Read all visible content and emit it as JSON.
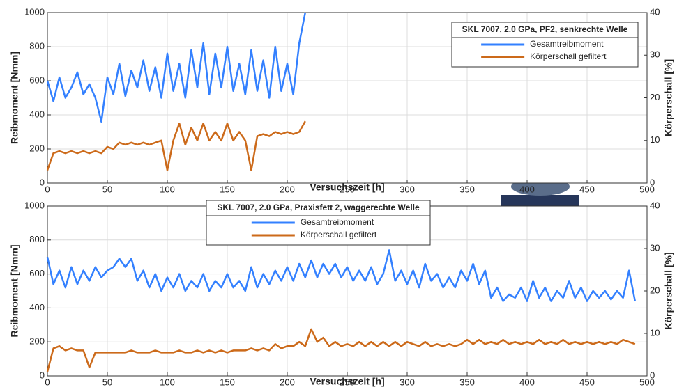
{
  "chart_data": [
    {
      "type": "line",
      "xlabel": "Versuchszeit [h]",
      "ylabel": "Reibmoment [Nmm]",
      "y2label": "Körperschall [%]",
      "legend_title": "SKL 7007, 2.0 GPa, PF2, senkrechte Welle",
      "grid": true,
      "xlim": [
        0,
        500
      ],
      "xticks": [
        0,
        50,
        100,
        150,
        200,
        250,
        300,
        350,
        400,
        450,
        500
      ],
      "ylim": [
        0,
        1000
      ],
      "yticks": [
        0,
        200,
        400,
        600,
        800,
        1000
      ],
      "y2lim": [
        0,
        40
      ],
      "y2ticks": [
        0,
        10,
        20,
        30,
        40
      ],
      "x": [
        0,
        5,
        10,
        15,
        20,
        25,
        30,
        35,
        40,
        45,
        50,
        55,
        60,
        65,
        70,
        75,
        80,
        85,
        90,
        95,
        100,
        105,
        110,
        115,
        120,
        125,
        130,
        135,
        140,
        145,
        150,
        155,
        160,
        165,
        170,
        175,
        180,
        185,
        190,
        195,
        200,
        205,
        210,
        215
      ],
      "series": [
        {
          "name": "Gesamtreibmoment",
          "color": "#3380ff",
          "values": [
            600,
            480,
            620,
            500,
            560,
            650,
            520,
            580,
            500,
            360,
            620,
            520,
            700,
            510,
            660,
            560,
            720,
            540,
            680,
            500,
            760,
            540,
            700,
            500,
            780,
            560,
            820,
            520,
            760,
            560,
            800,
            540,
            700,
            520,
            780,
            540,
            720,
            500,
            800,
            540,
            700,
            520,
            820,
            1000
          ]
        },
        {
          "name": "Körperschall gefiltert",
          "color": "#cc6a1a",
          "axis": "y2",
          "values": [
            3,
            7,
            7.5,
            7,
            7.5,
            7,
            7.5,
            7,
            7.5,
            7,
            8.5,
            8,
            9.5,
            9,
            9.5,
            9,
            9.5,
            9,
            9.5,
            10,
            3,
            10,
            14,
            9,
            13,
            10,
            14,
            10,
            12,
            10,
            14,
            10,
            12,
            10,
            3,
            11,
            11.5,
            11,
            12,
            11.5,
            12,
            11.5,
            12,
            14.5
          ]
        }
      ]
    },
    {
      "type": "line",
      "xlabel": "Versuchszeit [h]",
      "ylabel": "Reibmoment [Nmm]",
      "y2label": "Körperschall [%]",
      "legend_title": "SKL 7007, 2.0 GPa, Praxisfett 2, waggerechte Welle",
      "grid": true,
      "xlim": [
        0,
        500
      ],
      "xticks": [
        0,
        50,
        100,
        150,
        200,
        250,
        300,
        350,
        400,
        450,
        500
      ],
      "ylim": [
        0,
        1000
      ],
      "yticks": [
        0,
        200,
        400,
        600,
        800,
        1000
      ],
      "y2lim": [
        0,
        40
      ],
      "y2ticks": [
        0,
        10,
        20,
        30,
        40
      ],
      "x": [
        0,
        5,
        10,
        15,
        20,
        25,
        30,
        35,
        40,
        45,
        50,
        55,
        60,
        65,
        70,
        75,
        80,
        85,
        90,
        95,
        100,
        105,
        110,
        115,
        120,
        125,
        130,
        135,
        140,
        145,
        150,
        155,
        160,
        165,
        170,
        175,
        180,
        185,
        190,
        195,
        200,
        205,
        210,
        215,
        220,
        225,
        230,
        235,
        240,
        245,
        250,
        255,
        260,
        265,
        270,
        275,
        280,
        285,
        290,
        295,
        300,
        305,
        310,
        315,
        320,
        325,
        330,
        335,
        340,
        345,
        350,
        355,
        360,
        365,
        370,
        375,
        380,
        385,
        390,
        395,
        400,
        405,
        410,
        415,
        420,
        425,
        430,
        435,
        440,
        445,
        450,
        455,
        460,
        465,
        470,
        475,
        480,
        485,
        490
      ],
      "series": [
        {
          "name": "Gesamtreibmoment",
          "color": "#3380ff",
          "values": [
            700,
            540,
            620,
            520,
            640,
            540,
            620,
            560,
            640,
            580,
            620,
            640,
            690,
            640,
            690,
            560,
            620,
            520,
            600,
            500,
            580,
            520,
            600,
            500,
            560,
            520,
            600,
            500,
            560,
            520,
            600,
            520,
            560,
            500,
            640,
            520,
            600,
            540,
            620,
            560,
            640,
            560,
            660,
            580,
            680,
            580,
            660,
            600,
            660,
            580,
            640,
            560,
            620,
            560,
            640,
            540,
            600,
            740,
            560,
            620,
            540,
            620,
            520,
            660,
            560,
            600,
            520,
            580,
            520,
            620,
            560,
            660,
            540,
            620,
            460,
            520,
            440,
            480,
            460,
            520,
            440,
            560,
            460,
            520,
            440,
            500,
            460,
            560,
            460,
            520,
            440,
            500,
            460,
            500,
            450,
            500,
            460,
            620,
            440
          ]
        },
        {
          "name": "Körperschall gefiltert",
          "color": "#cc6a1a",
          "axis": "y2",
          "values": [
            1,
            6.5,
            7,
            6,
            6.5,
            6,
            6,
            2,
            5.5,
            5.5,
            5.5,
            5.5,
            5.5,
            5.5,
            6,
            5.5,
            5.5,
            5.5,
            6,
            5.5,
            5.5,
            5.5,
            6,
            5.5,
            5.5,
            6,
            5.5,
            6,
            5.5,
            6,
            5.5,
            6,
            6,
            6,
            6.5,
            6,
            6.5,
            6,
            7.5,
            6.5,
            7,
            7,
            8,
            7,
            11,
            8,
            9,
            7,
            8,
            7,
            7.5,
            7,
            8,
            7,
            8,
            7,
            8,
            7,
            8,
            7,
            8,
            7.5,
            7,
            8,
            7,
            7.5,
            7,
            7.5,
            7,
            7.5,
            8.5,
            7.5,
            8.5,
            7.5,
            8,
            7.5,
            8.5,
            7.5,
            8,
            7.5,
            8,
            7.5,
            8.5,
            7.5,
            8,
            7.5,
            8.5,
            7.5,
            8,
            7.5,
            8,
            7.5,
            8,
            7.5,
            8,
            7.5,
            8.5,
            8,
            7.5
          ]
        }
      ]
    }
  ]
}
